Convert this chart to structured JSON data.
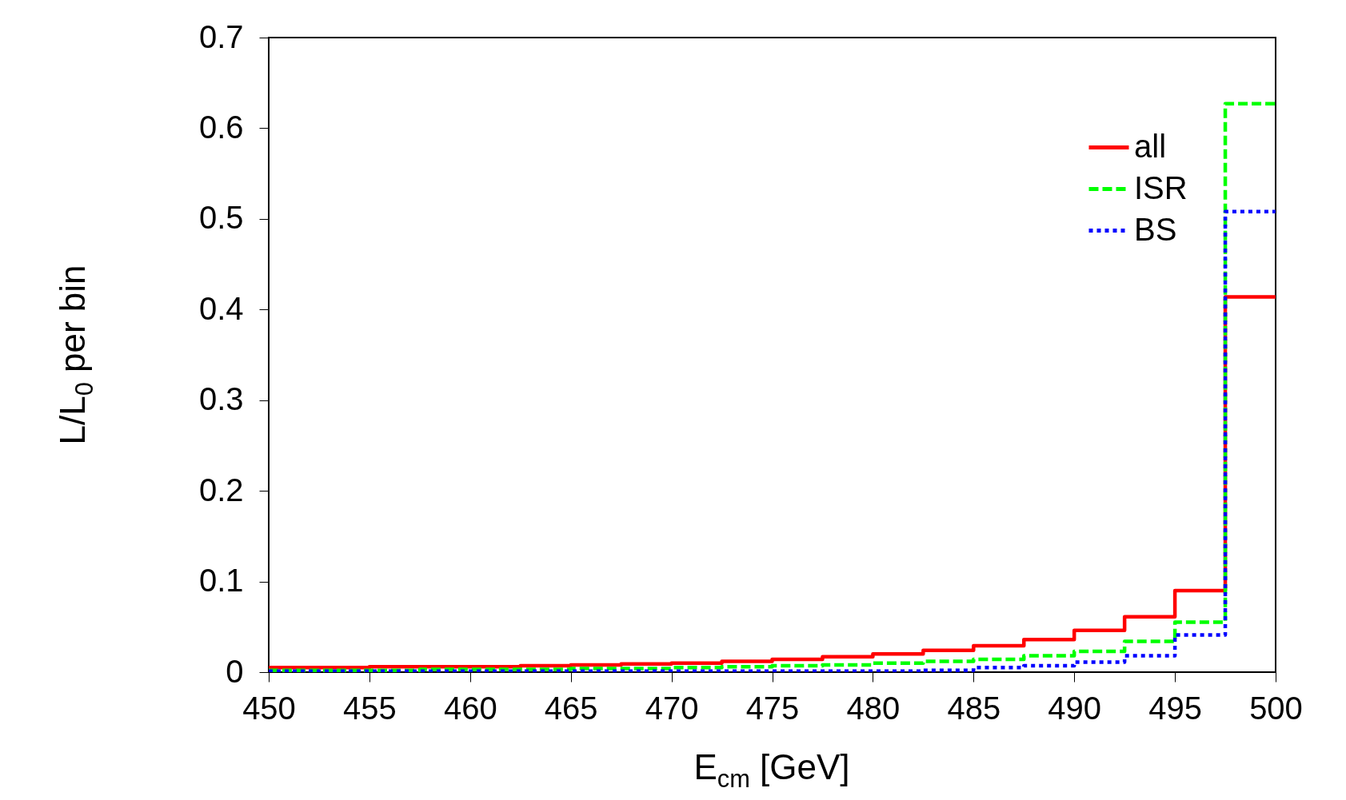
{
  "chart_data": {
    "type": "histogram",
    "xlabel": "E$_{cm}$ [GeV]",
    "ylabel": "L/L$_{0}$ per bin",
    "bins": [
      450,
      452.5,
      455,
      457.5,
      460,
      462.5,
      465,
      467.5,
      470,
      472.5,
      475,
      477.5,
      480,
      482.5,
      485,
      487.5,
      490,
      492.5,
      495,
      497.5,
      500
    ],
    "series": [
      {
        "name": "all",
        "color": "#ff0000",
        "line_style": "solid",
        "values": [
          0.005,
          0.005,
          0.006,
          0.006,
          0.006,
          0.007,
          0.008,
          0.009,
          0.01,
          0.012,
          0.014,
          0.017,
          0.02,
          0.024,
          0.029,
          0.036,
          0.046,
          0.061,
          0.09,
          0.414
        ]
      },
      {
        "name": "ISR",
        "color": "#00ff00",
        "line_style": "dashed",
        "values": [
          0.002,
          0.002,
          0.002,
          0.003,
          0.003,
          0.003,
          0.004,
          0.004,
          0.005,
          0.006,
          0.007,
          0.008,
          0.01,
          0.012,
          0.014,
          0.018,
          0.023,
          0.034,
          0.055,
          0.627
        ]
      },
      {
        "name": "BS",
        "color": "#0000ff",
        "line_style": "dotted",
        "values": [
          0.001,
          0.001,
          0.001,
          0.001,
          0.001,
          0.001,
          0.001,
          0.001,
          0.001,
          0.001,
          0.001,
          0.001,
          0.001,
          0.002,
          0.005,
          0.007,
          0.011,
          0.018,
          0.041,
          0.508
        ]
      }
    ],
    "xlim": [
      450,
      500
    ],
    "xticks": [
      450,
      455,
      460,
      465,
      470,
      475,
      480,
      485,
      490,
      495,
      500
    ],
    "ylim": [
      0,
      0.7
    ],
    "yticks": [
      0,
      0.1,
      0.2,
      0.3,
      0.4,
      0.5,
      0.6,
      0.7
    ],
    "grid": false,
    "legend": "top right"
  }
}
